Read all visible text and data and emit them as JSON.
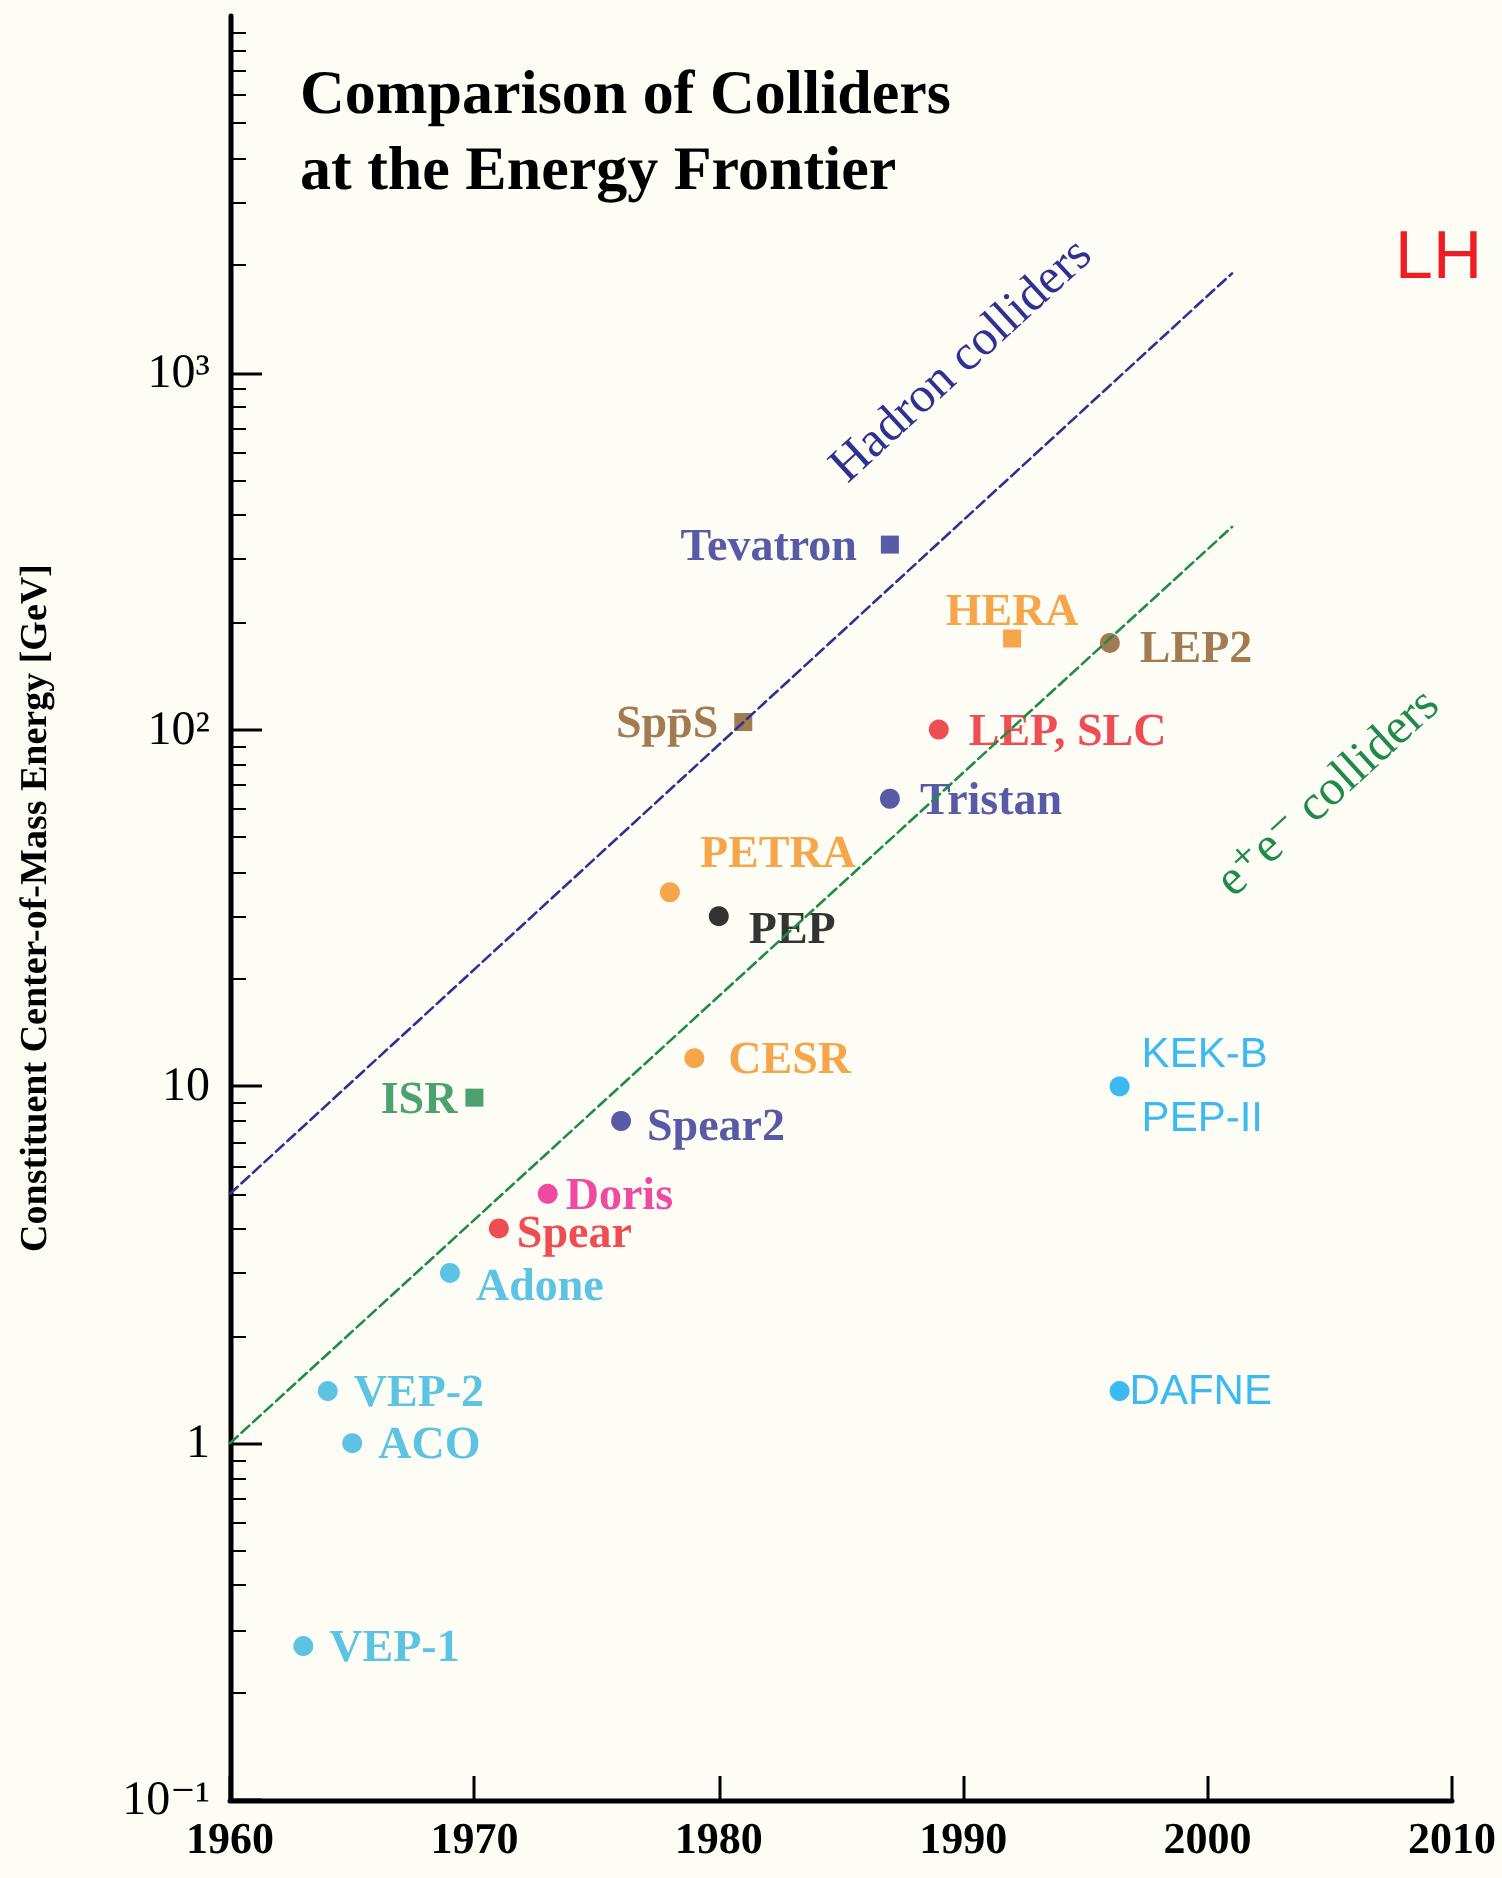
{
  "chart_data": {
    "type": "scatter",
    "title": "Comparison of Colliders\nat the Energy Frontier",
    "ylabel": "Constituent Center-of-Mass Energy [GeV]",
    "xlim": [
      1960,
      2010
    ],
    "xticks": [
      1960,
      1970,
      1980,
      1990,
      2000,
      2010
    ],
    "ylim": [
      0.1,
      10000
    ],
    "yticks": [
      {
        "value": 0.1,
        "label": "10⁻¹"
      },
      1,
      10,
      {
        "value": 100,
        "label": "10²"
      },
      {
        "value": 1000,
        "label": "10³"
      }
    ],
    "log": "y",
    "grid": false,
    "legend": false,
    "annotations": [
      "LH"
    ],
    "series": [
      {
        "name": "VEP-1",
        "color": "#33b5dd",
        "marker": "circle",
        "x": [
          1963
        ],
        "values": [
          0.27
        ]
      },
      {
        "name": "VEP-2",
        "color": "#33b5dd",
        "marker": "circle",
        "x": [
          1964
        ],
        "values": [
          1.4
        ]
      },
      {
        "name": "ACO",
        "color": "#33b5dd",
        "marker": "circle",
        "x": [
          1965
        ],
        "values": [
          1.0
        ]
      },
      {
        "name": "Adone",
        "color": "#33b5dd",
        "marker": "circle",
        "x": [
          1969
        ],
        "values": [
          3
        ]
      },
      {
        "name": "Spear",
        "color": "#e8202a",
        "marker": "circle",
        "x": [
          1971
        ],
        "values": [
          4
        ]
      },
      {
        "name": "Doris",
        "color": "#ec1c8c",
        "marker": "circle",
        "x": [
          1973
        ],
        "values": [
          5
        ]
      },
      {
        "name": "Spear2",
        "color": "#2e3192",
        "marker": "circle",
        "x": [
          1976
        ],
        "values": [
          8
        ]
      },
      {
        "name": "CESR",
        "color": "#f39021",
        "marker": "circle",
        "x": [
          1979
        ],
        "values": [
          12
        ]
      },
      {
        "name": "ISR",
        "color": "#1f8a4c",
        "marker": "square",
        "x": [
          1970
        ],
        "values": [
          9.3
        ]
      },
      {
        "name": "PEP",
        "color": "#000000",
        "marker": "circle",
        "x": [
          1980
        ],
        "values": [
          30
        ]
      },
      {
        "name": "PETRA",
        "color": "#f39021",
        "marker": "circle",
        "x": [
          1978
        ],
        "values": [
          35
        ]
      },
      {
        "name": "Spp̄S",
        "color": "#8b5a2b",
        "marker": "square",
        "x": [
          1981
        ],
        "values": [
          105
        ]
      },
      {
        "name": "LEP, SLC",
        "color": "#e8202a",
        "marker": "circle",
        "x": [
          1989
        ],
        "values": [
          100
        ]
      },
      {
        "name": "Tristan",
        "color": "#2e3192",
        "marker": "circle",
        "x": [
          1987
        ],
        "values": [
          64
        ]
      },
      {
        "name": "Tevatron",
        "color": "#2e3192",
        "marker": "square",
        "x": [
          1987
        ],
        "values": [
          330
        ]
      },
      {
        "name": "HERA",
        "color": "#f39021",
        "marker": "square",
        "x": [
          1992
        ],
        "values": [
          180
        ]
      },
      {
        "name": "LEP2",
        "color": "#8b5a2b",
        "marker": "circle",
        "x": [
          1996
        ],
        "values": [
          175
        ]
      },
      {
        "name": "KEK-B\nPEP-II",
        "color": "#0aa8ef",
        "marker": "circle",
        "x": [
          1996.4
        ],
        "values": [
          10
        ]
      },
      {
        "name": "DAFNE",
        "color": "#0aa8ef",
        "marker": "circle",
        "x": [
          1996.4
        ],
        "values": [
          1.4
        ]
      },
      {
        "name": "Hadron colliders",
        "type": "line",
        "color": "#2e3192",
        "line_style": "dashed",
        "marker": "none",
        "x": [
          1960,
          2001
        ],
        "values": [
          5,
          1900
        ]
      },
      {
        "name": "e⁺e⁻ colliders",
        "type": "line",
        "color": "#1f8a4c",
        "line_style": "dashed",
        "marker": "none",
        "x": [
          1960,
          2001
        ],
        "values": [
          1,
          370
        ]
      }
    ]
  }
}
